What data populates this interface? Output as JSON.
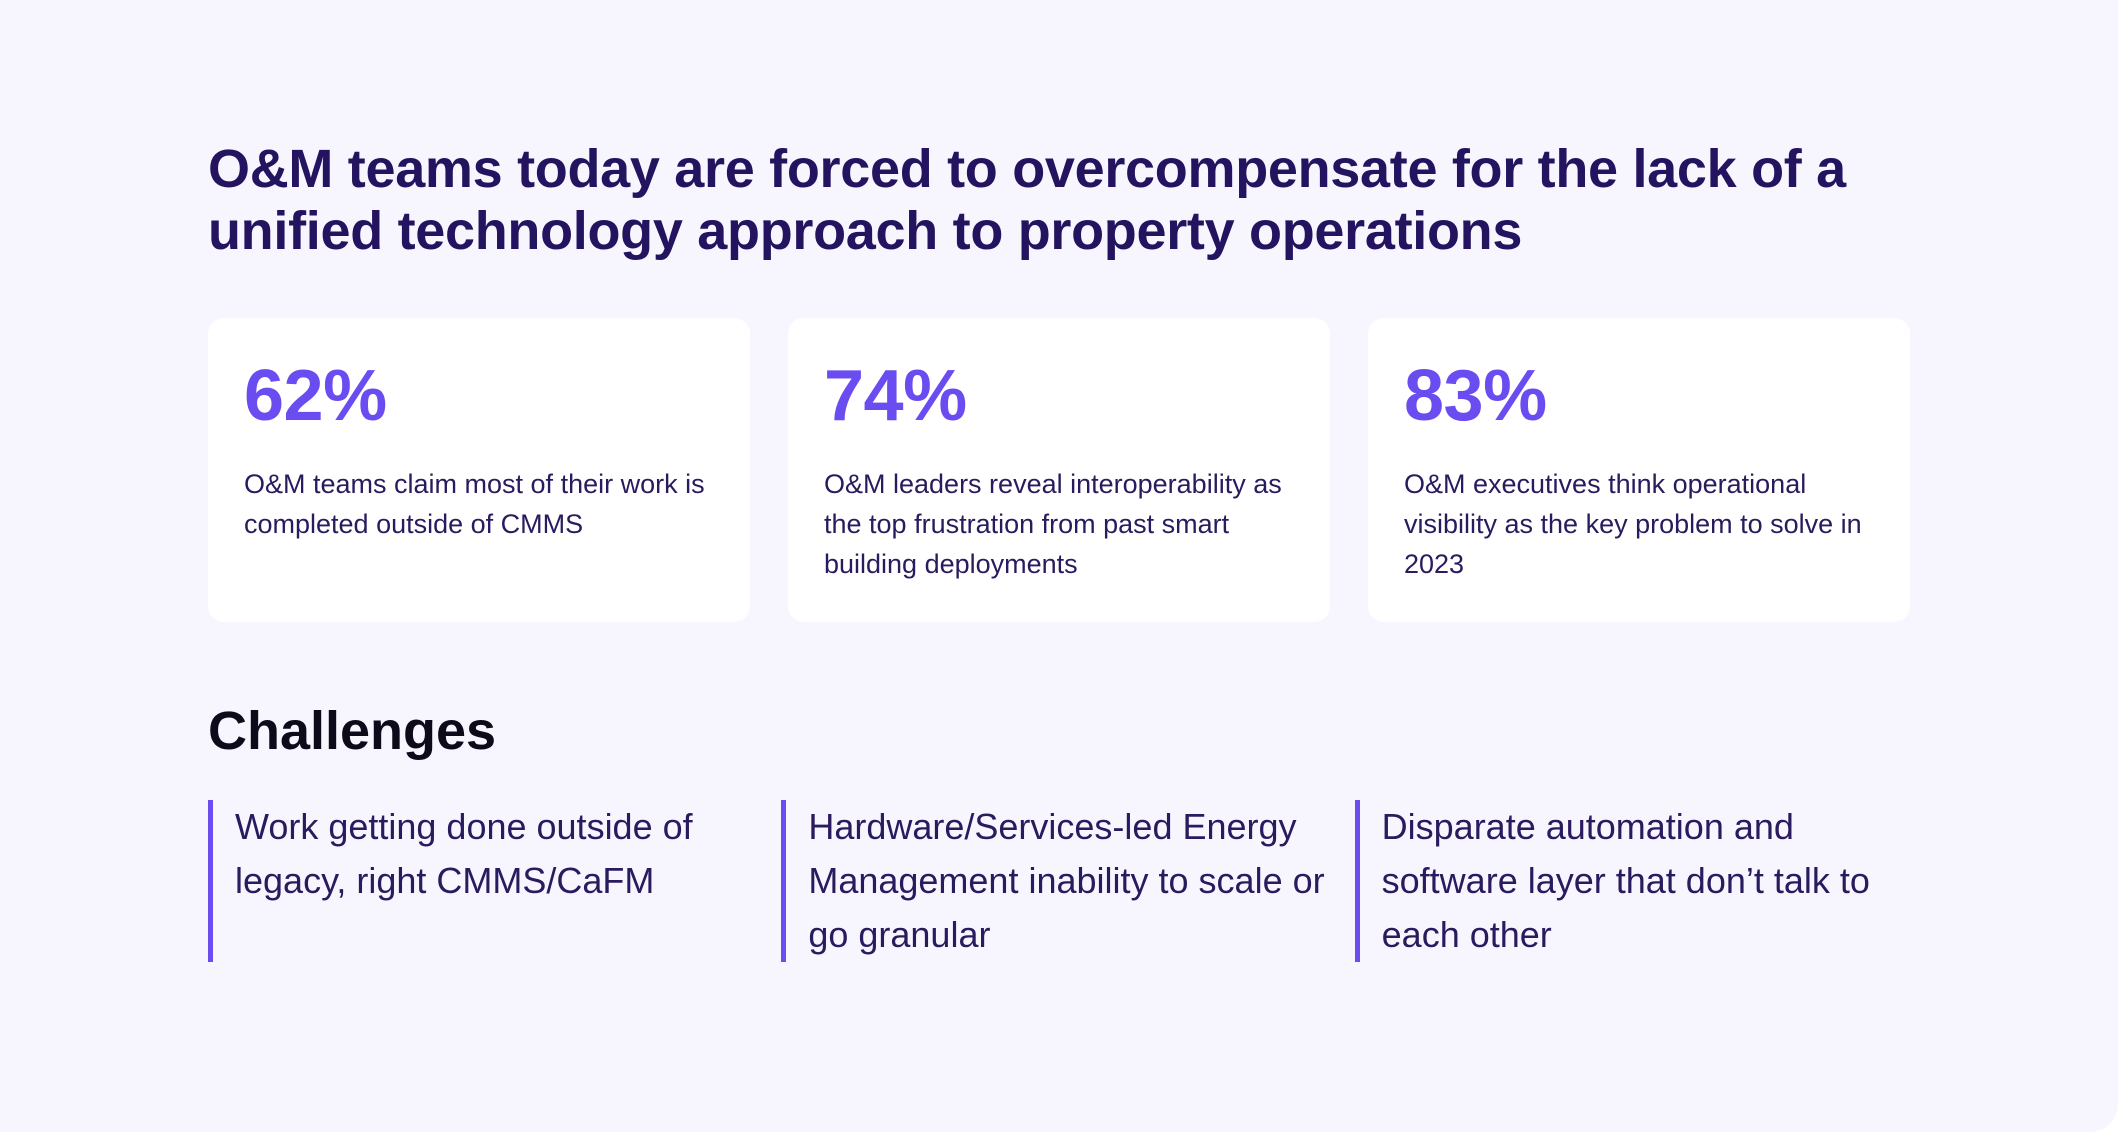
{
  "headline": "O&M teams today are forced to overcompensate for the lack of a unified technology approach to property operations",
  "stats": [
    {
      "value": "62%",
      "description": "O&M teams claim most of their work is completed outside of CMMS"
    },
    {
      "value": "74%",
      "description": "O&M leaders reveal interoperability as the top frustration from past smart building deployments"
    },
    {
      "value": "83%",
      "description": "O&M executives think operational visibility as the key problem to solve in 2023"
    }
  ],
  "challenges": {
    "title": "Challenges",
    "items": [
      "Work getting done outside of legacy, right CMMS/CaFM",
      "Hardware/Services-led Energy Management inability to scale or go granular",
      "Disparate automation and software layer that don’t talk to each other"
    ]
  },
  "colors": {
    "accent": "#6a4cf0",
    "headline": "#24135e",
    "background": "#f7f6ff",
    "card": "#ffffff"
  }
}
